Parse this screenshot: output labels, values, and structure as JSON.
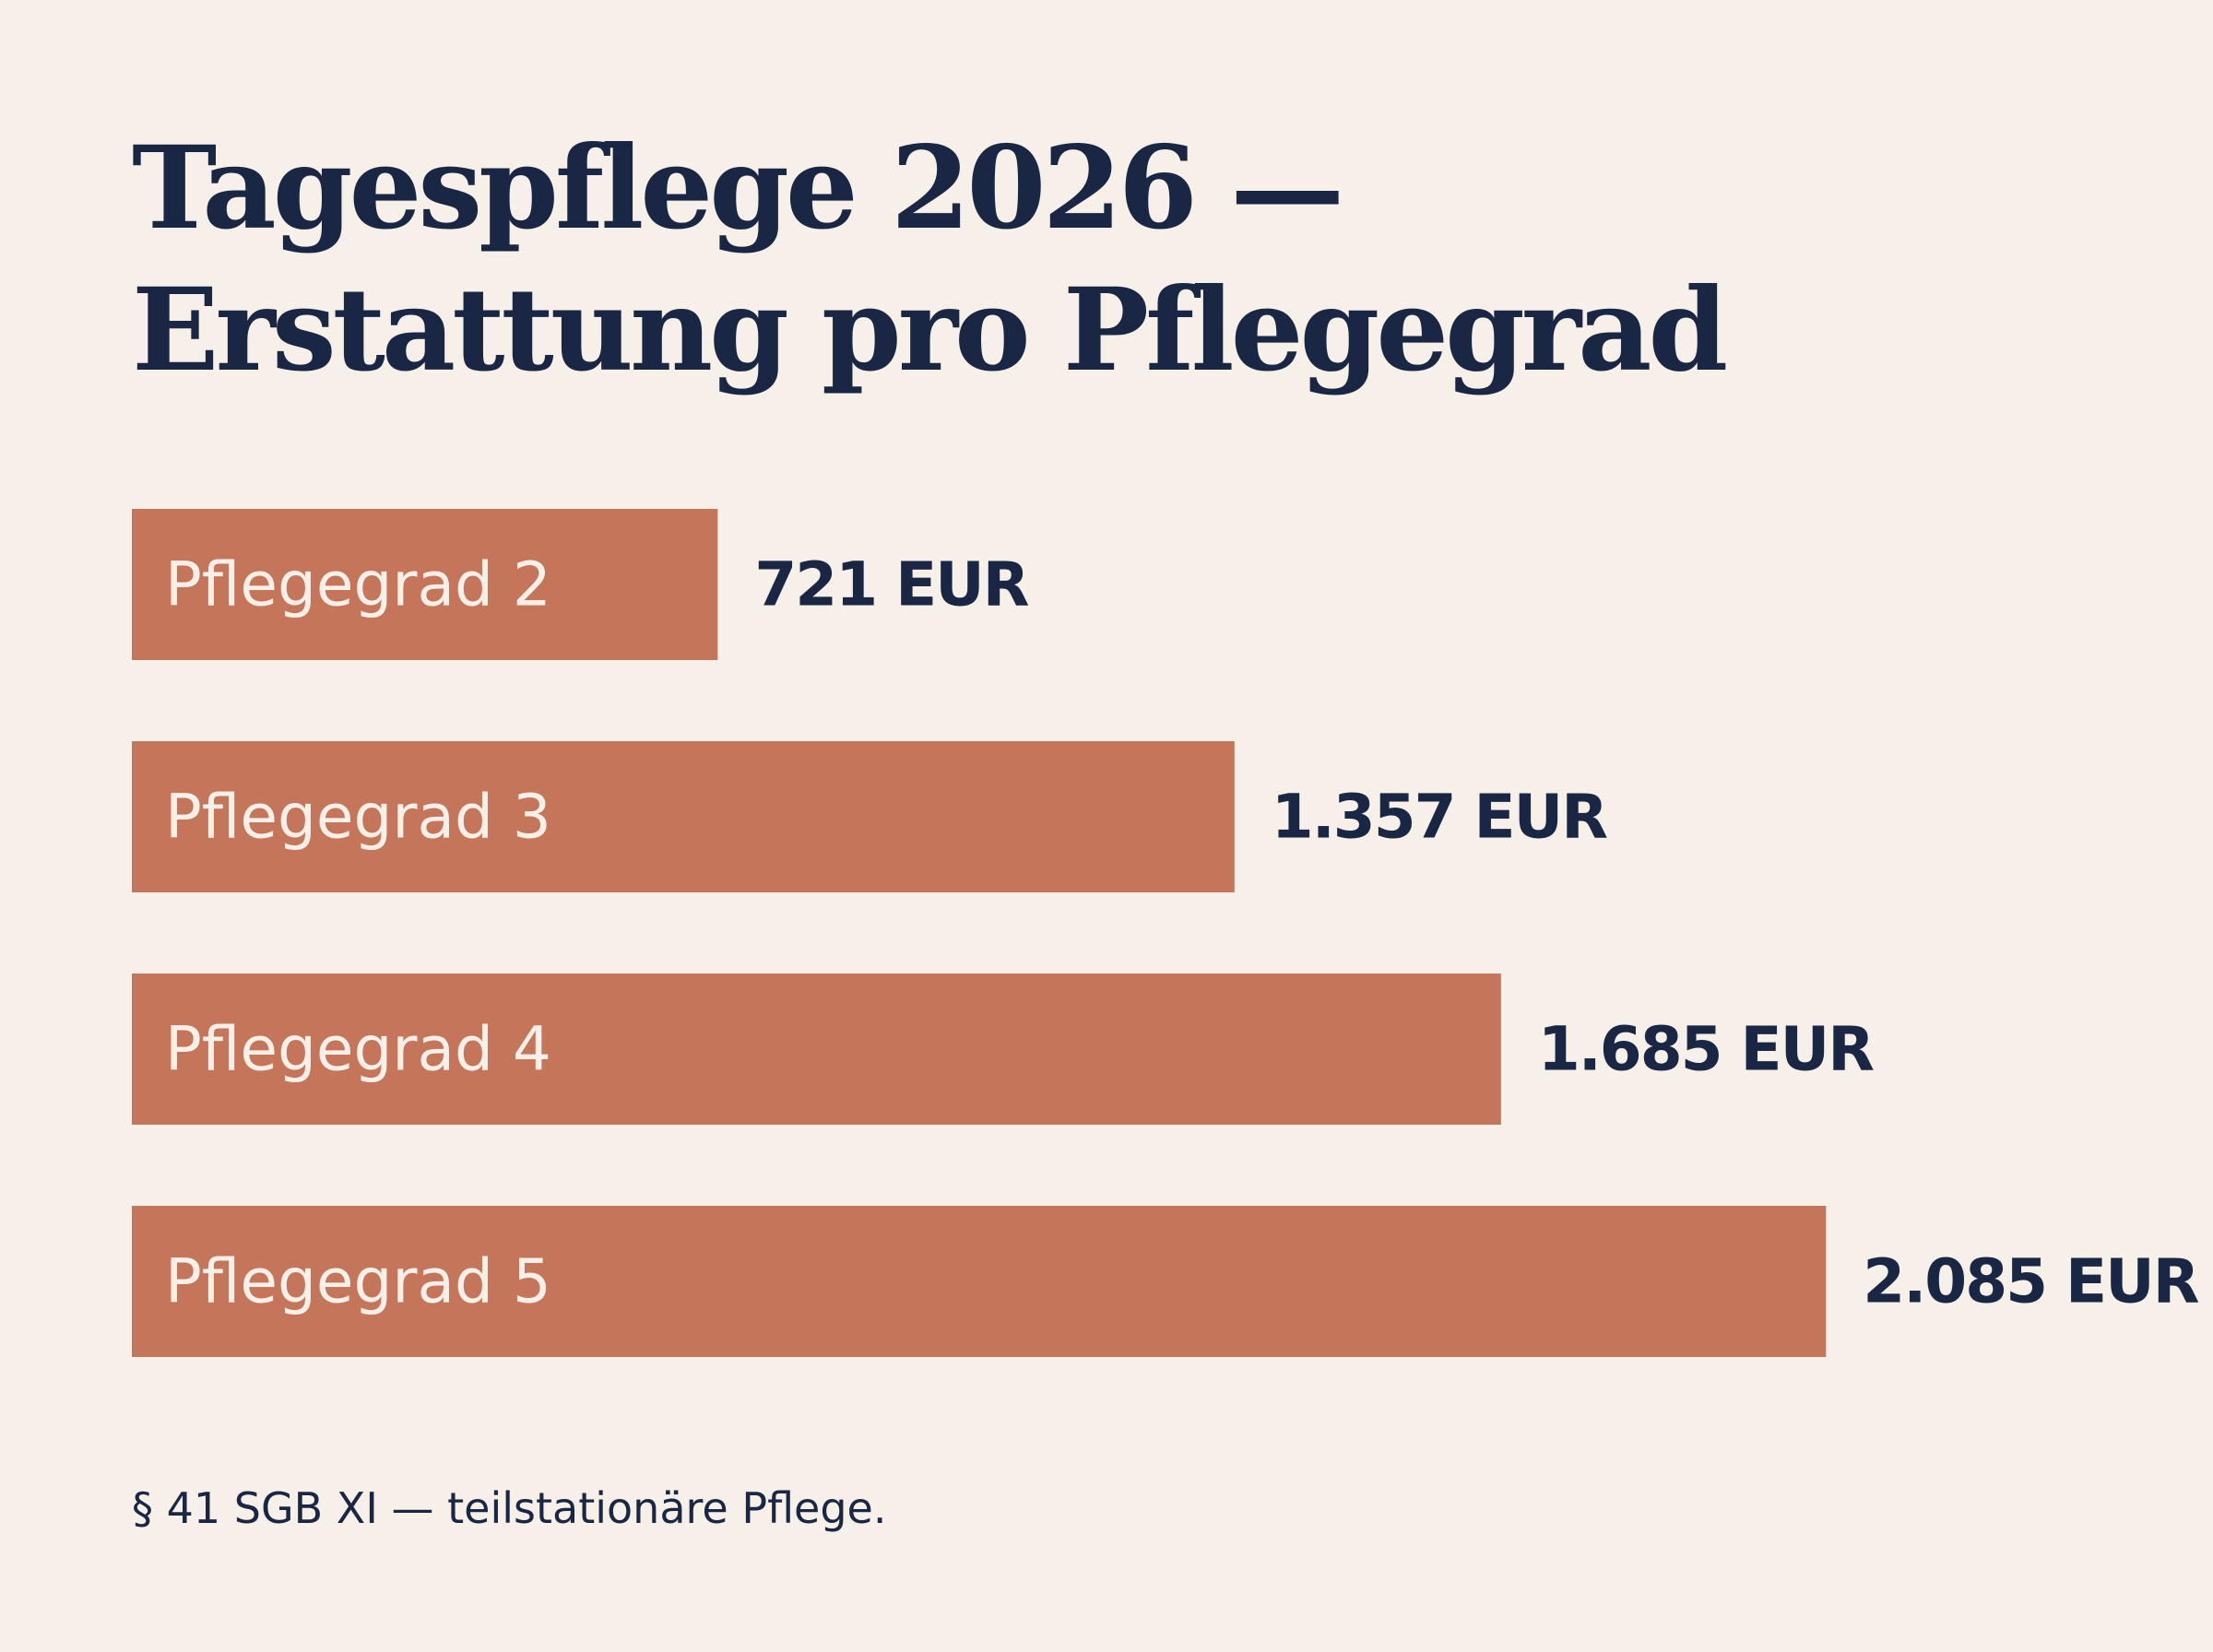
{
  "chart_data": {
    "type": "bar",
    "orientation": "horizontal",
    "title_lines": [
      "Tagespflege 2026 —",
      "Erstattung pro Pflegegrad"
    ],
    "categories": [
      "Pflegegrad 2",
      "Pflegegrad 3",
      "Pflegegrad 4",
      "Pflegegrad 5"
    ],
    "values": [
      721,
      1357,
      1685,
      2085
    ],
    "value_labels": [
      "721 EUR",
      "1.357 EUR",
      "1.685 EUR",
      "2.085 EUR"
    ],
    "unit": "EUR",
    "grid": false,
    "legend": false,
    "footnote": "§ 41 SGB XI — teilstationäre Pflege."
  },
  "colors": {
    "background": "#f6f0e9",
    "bar": "#c4755a",
    "text_dark": "#1a2744",
    "bar_text": "#f6f0e9"
  }
}
